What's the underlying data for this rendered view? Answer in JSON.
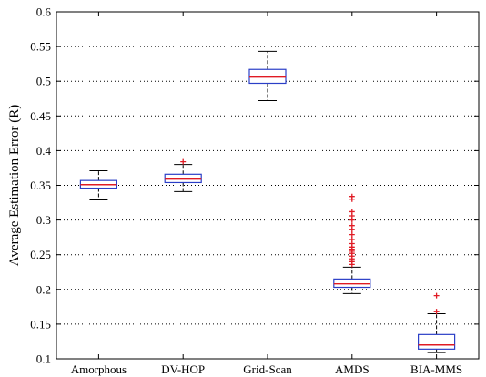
{
  "chart_data": {
    "type": "box",
    "title": "",
    "xlabel": "",
    "ylabel": "Average Estimation Error  (R)",
    "ylim": [
      0.1,
      0.6
    ],
    "yticks": [
      "0.1",
      "0.15",
      "0.2",
      "0.25",
      "0.3",
      "0.35",
      "0.4",
      "0.45",
      "0.5",
      "0.55",
      "0.6"
    ],
    "ygrid": "dotted",
    "categories": [
      "Amorphous",
      "DV-HOP",
      "Grid-Scan",
      "AMDS",
      "BIA-MMS"
    ],
    "boxes": [
      {
        "category": "Amorphous",
        "whisker_low": 0.329,
        "q1": 0.346,
        "median": 0.351,
        "q3": 0.357,
        "whisker_high": 0.371,
        "outliers": []
      },
      {
        "category": "DV-HOP",
        "whisker_low": 0.341,
        "q1": 0.354,
        "median": 0.359,
        "q3": 0.366,
        "whisker_high": 0.38,
        "outliers": [
          0.384
        ]
      },
      {
        "category": "Grid-Scan",
        "whisker_low": 0.472,
        "q1": 0.497,
        "median": 0.506,
        "q3": 0.517,
        "whisker_high": 0.543,
        "outliers": []
      },
      {
        "category": "AMDS",
        "whisker_low": 0.194,
        "q1": 0.203,
        "median": 0.208,
        "q3": 0.215,
        "whisker_high": 0.232,
        "outliers": [
          0.236,
          0.24,
          0.244,
          0.248,
          0.252,
          0.255,
          0.258,
          0.261,
          0.266,
          0.272,
          0.279,
          0.286,
          0.292,
          0.3,
          0.306,
          0.312,
          0.33,
          0.334
        ]
      },
      {
        "category": "BIA-MMS",
        "whisker_low": 0.109,
        "q1": 0.114,
        "median": 0.12,
        "q3": 0.135,
        "whisker_high": 0.165,
        "outliers": [
          0.168,
          0.191
        ]
      }
    ],
    "colors": {
      "box": "#2b3fc7",
      "median": "#e01b24",
      "outlier": "#e01b24",
      "whisker": "#000000",
      "grid": "#000000"
    }
  }
}
